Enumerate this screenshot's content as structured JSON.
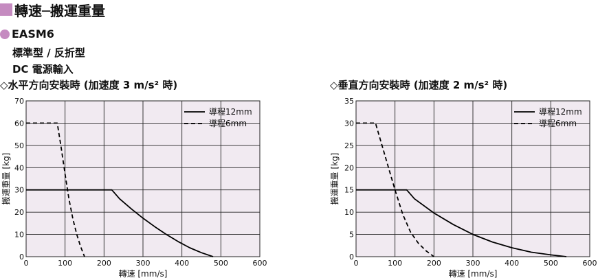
{
  "header": {
    "title": "轉速─搬運重量",
    "accent_color": "#c58bc0"
  },
  "product": {
    "model": "EASM6",
    "description_lines": [
      "標準型 / 反折型",
      "DC 電源輸入"
    ]
  },
  "chart_data": [
    {
      "type": "line",
      "title": "◇水平方向安裝時 (加速度 3 m/s² 時)",
      "xlabel": "轉速 [mm/s]",
      "ylabel": "搬運重量 [kg]",
      "xlim": [
        0,
        600
      ],
      "ylim": [
        0,
        70
      ],
      "xticks": [
        0,
        100,
        200,
        300,
        400,
        500,
        600
      ],
      "yticks": [
        0,
        10,
        20,
        30,
        40,
        50,
        60,
        70
      ],
      "grid": true,
      "legend": "top-right",
      "series": [
        {
          "name": "導程12mm",
          "style": "solid",
          "x": [
            0,
            220,
            240,
            270,
            300,
            330,
            360,
            390,
            420,
            450,
            480
          ],
          "y": [
            30,
            30,
            26,
            21.5,
            17.3,
            13.5,
            10,
            6.8,
            4,
            1.8,
            0
          ]
        },
        {
          "name": "導程6mm",
          "style": "dashed",
          "x": [
            0,
            80,
            90,
            100,
            110,
            120,
            130,
            140,
            150
          ],
          "y": [
            60,
            60,
            49,
            37,
            26,
            17,
            10,
            4.5,
            0
          ]
        }
      ]
    },
    {
      "type": "line",
      "title": "◇垂直方向安裝時 (加速度 2 m/s² 時)",
      "xlabel": "轉速 [mm/s]",
      "ylabel": "搬運重量 [kg]",
      "xlim": [
        0,
        600
      ],
      "ylim": [
        0,
        35
      ],
      "xticks": [
        0,
        100,
        200,
        300,
        400,
        500,
        600
      ],
      "yticks": [
        0,
        5,
        10,
        15,
        20,
        25,
        30,
        35
      ],
      "grid": true,
      "legend": "top-right",
      "series": [
        {
          "name": "導程12mm",
          "style": "solid",
          "x": [
            0,
            130,
            150,
            200,
            250,
            300,
            350,
            400,
            450,
            500,
            540
          ],
          "y": [
            15,
            15,
            13,
            9.8,
            7.2,
            5,
            3.3,
            2,
            1,
            0.4,
            0
          ]
        },
        {
          "name": "導程6mm",
          "style": "dashed",
          "x": [
            0,
            50,
            60,
            80,
            100,
            120,
            140,
            160,
            180,
            200
          ],
          "y": [
            30,
            30,
            27,
            21,
            15,
            9.5,
            5.5,
            3,
            1.3,
            0
          ]
        }
      ]
    }
  ]
}
